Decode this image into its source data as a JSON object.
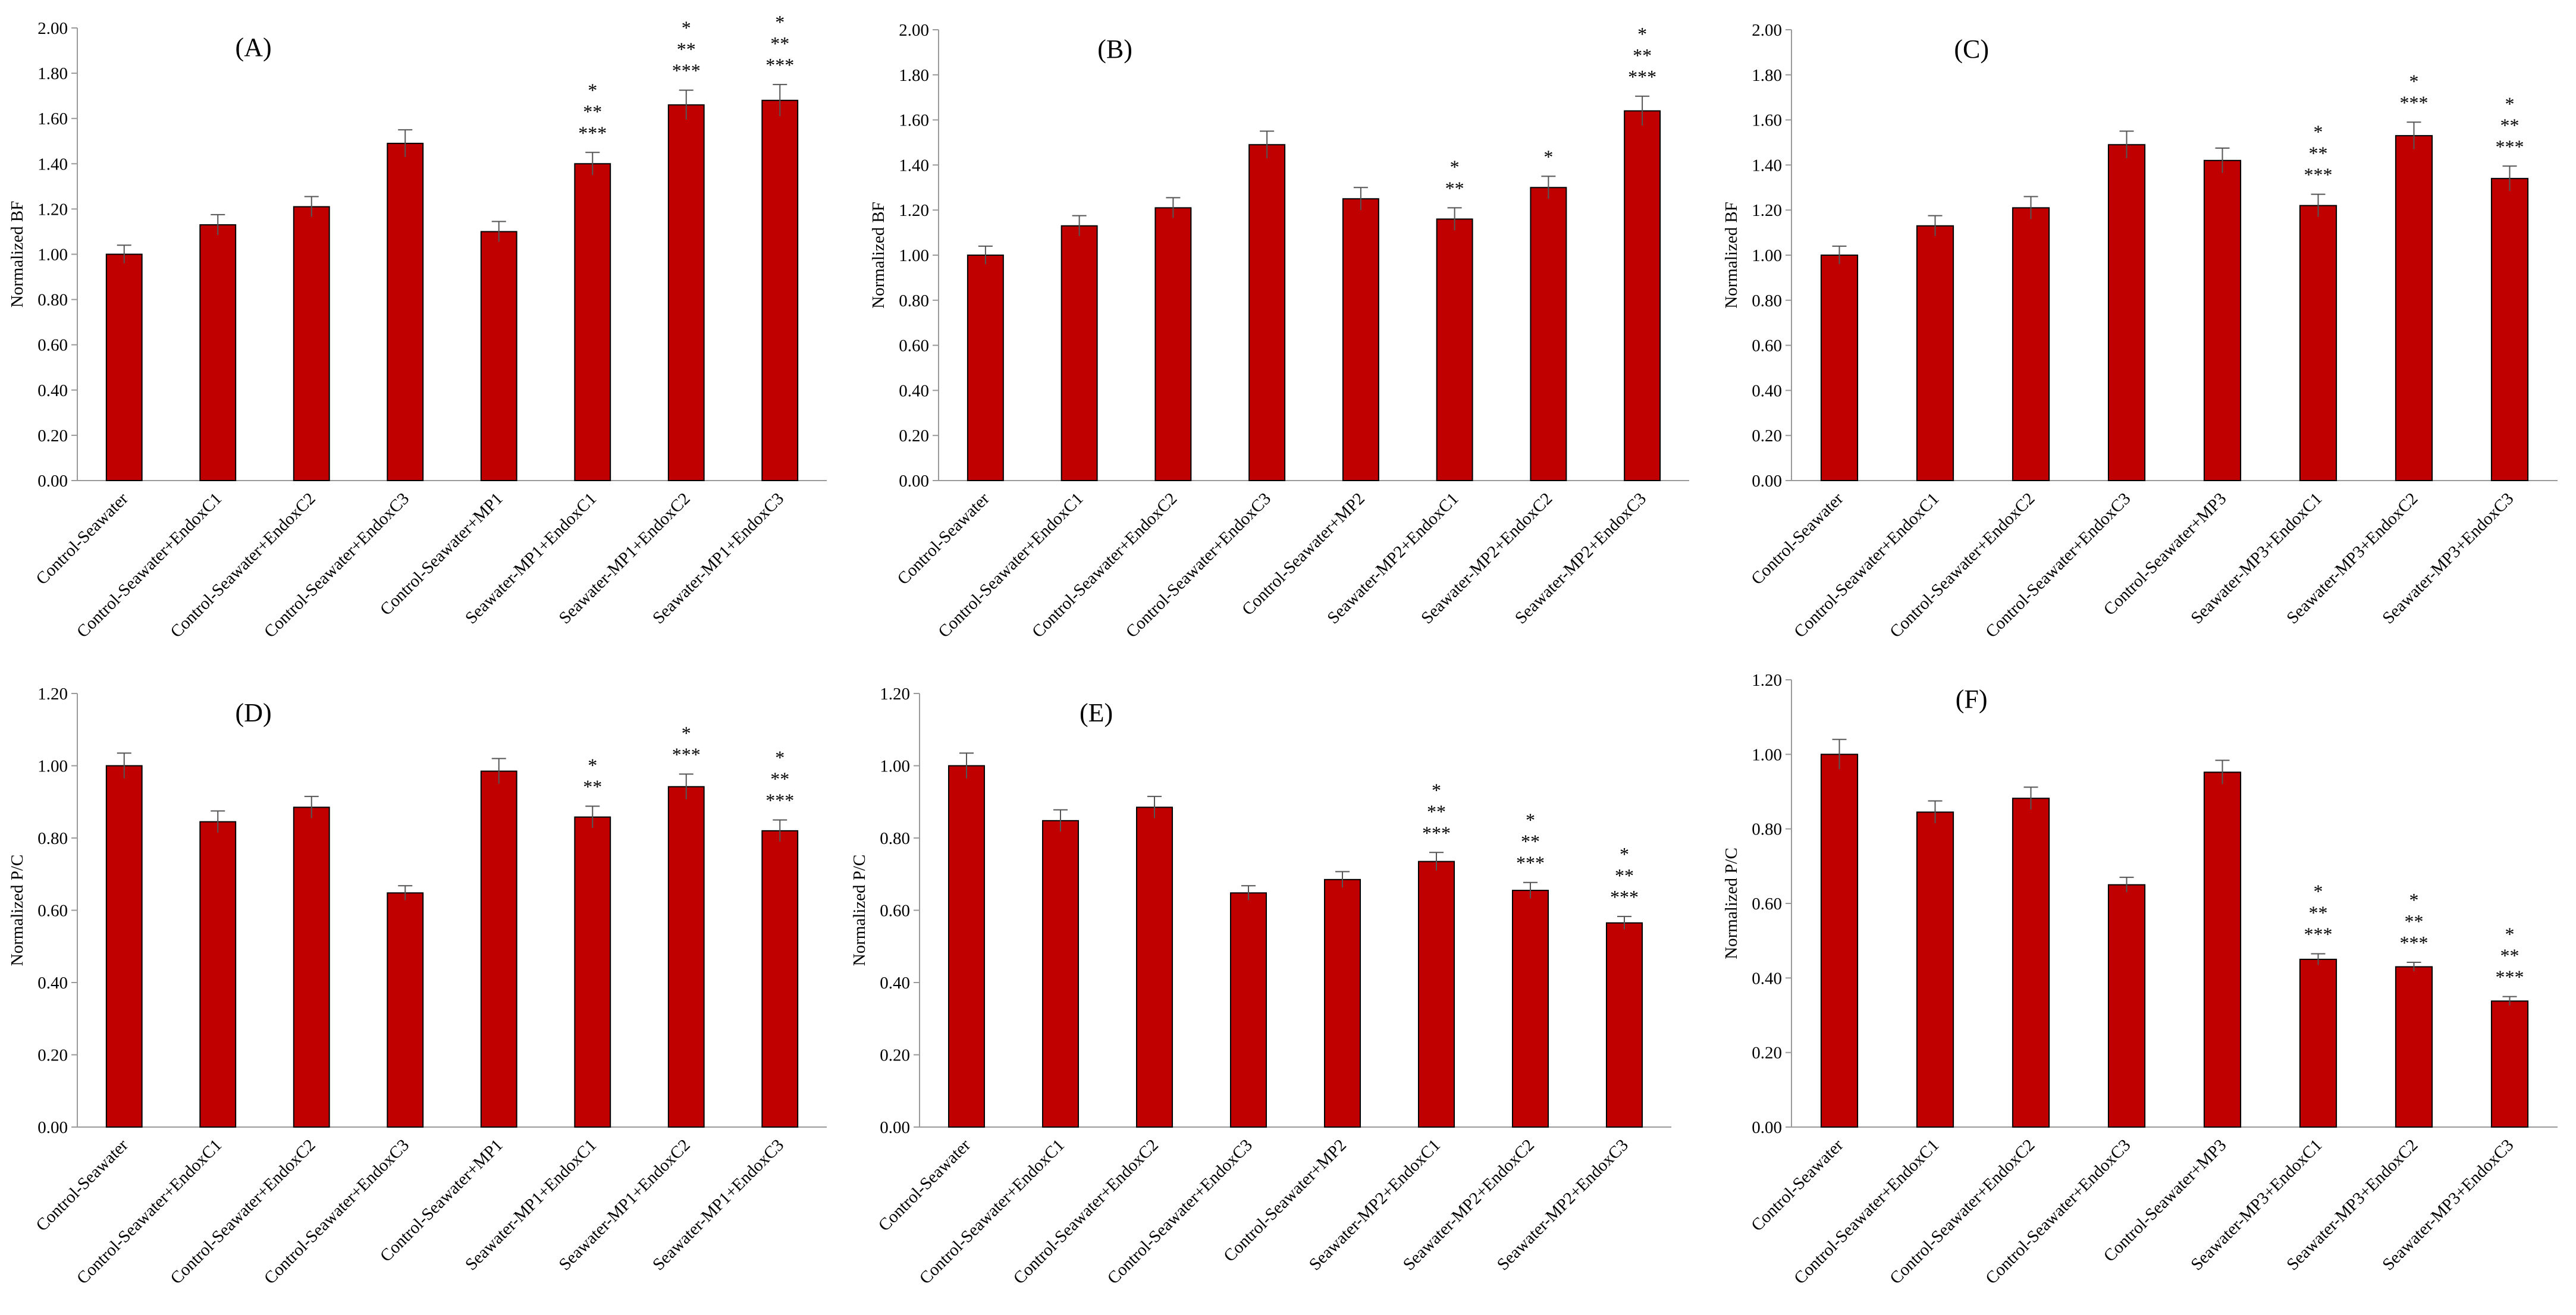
{
  "bar_color": "#C00000",
  "bar_edge_color": "#000000",
  "chart_data": [
    {
      "type": "bar",
      "title": "(A)",
      "ylabel": "Normalized BF",
      "xlabel": "",
      "ylim": [
        0,
        2.0
      ],
      "ytick_step": 0.2,
      "ytick_labels": [
        "0.00",
        "0.20",
        "0.40",
        "0.60",
        "0.80",
        "1.00",
        "1.20",
        "1.40",
        "1.60",
        "1.80",
        "2.00"
      ],
      "grid": false,
      "categories": [
        "Control-Seawater",
        "Control-Seawater+EndoxC1",
        "Control-Seawater+EndoxC2",
        "Control-Seawater+EndoxC3",
        "Control-Seawater+MP1",
        "Seawater-MP1+EndoxC1",
        "Seawater-MP1+EndoxC2",
        "Seawater-MP1+EndoxC3"
      ],
      "values": [
        1.0,
        1.13,
        1.21,
        1.49,
        1.1,
        1.4,
        1.66,
        1.68
      ],
      "errors": [
        0.04,
        0.045,
        0.045,
        0.06,
        0.045,
        0.05,
        0.065,
        0.07
      ],
      "significance": [
        [],
        [],
        [],
        [],
        [],
        [
          "*",
          "**",
          "***"
        ],
        [
          "*",
          "**",
          "***"
        ],
        [
          "*",
          "**",
          "***"
        ]
      ]
    },
    {
      "type": "bar",
      "title": "(B)",
      "ylabel": "Normalized BF",
      "xlabel": "",
      "ylim": [
        0,
        2.0
      ],
      "ytick_step": 0.2,
      "ytick_labels": [
        "0.00",
        "0.20",
        "0.40",
        "0.60",
        "0.80",
        "1.00",
        "1.20",
        "1.40",
        "1.60",
        "1.80",
        "2.00"
      ],
      "grid": false,
      "categories": [
        "Control-Seawater",
        "Control-Seawater+EndoxC1",
        "Control-Seawater+EndoxC2",
        "Control-Seawater+EndoxC3",
        "Control-Seawater+MP2",
        "Seawater-MP2+EndoxC1",
        "Seawater-MP2+EndoxC2",
        "Seawater-MP2+EndoxC3"
      ],
      "values": [
        1.0,
        1.13,
        1.21,
        1.49,
        1.25,
        1.16,
        1.3,
        1.64
      ],
      "errors": [
        0.04,
        0.045,
        0.045,
        0.06,
        0.05,
        0.05,
        0.05,
        0.065
      ],
      "significance": [
        [],
        [],
        [],
        [],
        [],
        [
          "*",
          "**"
        ],
        [
          "*"
        ],
        [
          "*",
          "**",
          "***"
        ]
      ]
    },
    {
      "type": "bar",
      "title": "(C)",
      "ylabel": "Normalized BF",
      "xlabel": "",
      "ylim": [
        0,
        2.0
      ],
      "ytick_step": 0.2,
      "ytick_labels": [
        "0.00",
        "0.20",
        "0.40",
        "0.60",
        "0.80",
        "1.00",
        "1.20",
        "1.40",
        "1.60",
        "1.80",
        "2.00"
      ],
      "grid": false,
      "categories": [
        "Control-Seawater",
        "Control-Seawater+EndoxC1",
        "Control-Seawater+EndoxC2",
        "Control-Seawater+EndoxC3",
        "Control-Seawater+MP3",
        "Seawater-MP3+EndoxC1",
        "Seawater-MP3+EndoxC2",
        "Seawater-MP3+EndoxC3"
      ],
      "values": [
        1.0,
        1.13,
        1.21,
        1.49,
        1.42,
        1.22,
        1.53,
        1.34
      ],
      "errors": [
        0.04,
        0.045,
        0.05,
        0.06,
        0.055,
        0.05,
        0.06,
        0.055
      ],
      "significance": [
        [],
        [],
        [],
        [],
        [],
        [
          "*",
          "**",
          "***"
        ],
        [
          "*",
          "***"
        ],
        [
          "*",
          "**",
          "***"
        ]
      ]
    },
    {
      "type": "bar",
      "title": "(D)",
      "ylabel": "Normalized P/C",
      "xlabel": "",
      "ylim": [
        0,
        1.2
      ],
      "ytick_step": 0.2,
      "ytick_labels": [
        "0.00",
        "0.20",
        "0.40",
        "0.60",
        "0.80",
        "1.00",
        "1.20"
      ],
      "grid": false,
      "categories": [
        "Control-Seawater",
        "Control-Seawater+EndoxC1",
        "Control-Seawater+EndoxC2",
        "Control-Seawater+EndoxC3",
        "Control-Seawater+MP1",
        "Seawater-MP1+EndoxC1",
        "Seawater-MP1+EndoxC2",
        "Seawater-MP1+EndoxC3"
      ],
      "values": [
        1.0,
        0.845,
        0.885,
        0.648,
        0.985,
        0.858,
        0.942,
        0.82
      ],
      "errors": [
        0.035,
        0.03,
        0.03,
        0.02,
        0.035,
        0.03,
        0.035,
        0.03
      ],
      "significance": [
        [],
        [],
        [],
        [],
        [],
        [
          "*",
          "**"
        ],
        [
          "*",
          "***"
        ],
        [
          "*",
          "**",
          "***"
        ]
      ]
    },
    {
      "type": "bar",
      "title": "(E)",
      "ylabel": "Normalized P/C",
      "xlabel": "",
      "ylim": [
        0,
        1.2
      ],
      "ytick_step": 0.2,
      "ytick_labels": [
        "0.00",
        "0.20",
        "0.40",
        "0.60",
        "0.80",
        "1.00",
        "1.20"
      ],
      "grid": false,
      "categories": [
        "Control-Seawater",
        "Control-Seawater+EndoxC1",
        "Control-Seawater+EndoxC2",
        "Control-Seawater+EndoxC3",
        "Control-Seawater+MP2",
        "Seawater-MP2+EndoxC1",
        "Seawater-MP2+EndoxC2",
        "Seawater-MP2+EndoxC3"
      ],
      "values": [
        1.0,
        0.848,
        0.885,
        0.648,
        0.685,
        0.735,
        0.655,
        0.565
      ],
      "errors": [
        0.035,
        0.03,
        0.03,
        0.02,
        0.022,
        0.025,
        0.022,
        0.018
      ],
      "significance": [
        [],
        [],
        [],
        [],
        [],
        [
          "*",
          "**",
          "***"
        ],
        [
          "*",
          "**",
          "***"
        ],
        [
          "*",
          "**",
          "***"
        ]
      ]
    },
    {
      "type": "bar",
      "title": "(F)",
      "ylabel": "Normalized P/C",
      "xlabel": "",
      "ylim": [
        0,
        1.2
      ],
      "ytick_step": 0.2,
      "ytick_labels": [
        "0.00",
        "0.20",
        "0.40",
        "0.60",
        "0.80",
        "1.00",
        "1.20"
      ],
      "grid": false,
      "categories": [
        "Control-Seawater",
        "Control-Seawater+EndoxC1",
        "Control-Seawater+EndoxC2",
        "Control-Seawater+EndoxC3",
        "Control-Seawater+MP3",
        "Seawater-MP3+EndoxC1",
        "Seawater-MP3+EndoxC2",
        "Seawater-MP3+EndoxC3"
      ],
      "values": [
        1.0,
        0.845,
        0.882,
        0.65,
        0.952,
        0.45,
        0.43,
        0.338
      ],
      "errors": [
        0.04,
        0.03,
        0.03,
        0.02,
        0.032,
        0.015,
        0.012,
        0.012
      ],
      "significance": [
        [],
        [],
        [],
        [],
        [],
        [
          "*",
          "**",
          "***"
        ],
        [
          "*",
          "**",
          "***"
        ],
        [
          "*",
          "**",
          "***"
        ]
      ]
    }
  ]
}
